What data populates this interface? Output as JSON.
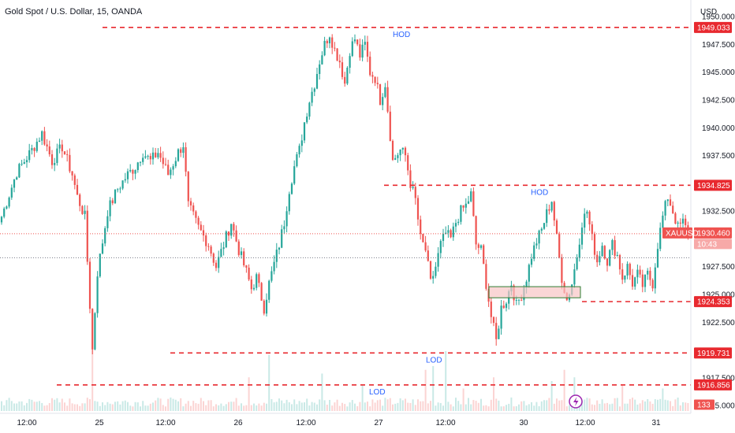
{
  "chart_data": {
    "type": "candlestick",
    "title": "Gold Spot / U.S. Dollar, 15, OANDA",
    "currency_label": "USD",
    "symbol": "XAUUSD",
    "last_price": "1930.460",
    "countdown": "10:43",
    "volume_label": "133",
    "ylim": [
      1914.3,
      1951.5
    ],
    "grid": false,
    "y_ticks": [
      "1950.000",
      "1947.500",
      "1945.000",
      "1942.500",
      "1940.000",
      "1937.500",
      "1932.500",
      "1927.500",
      "1925.000",
      "1922.500",
      "1917.500",
      "1915.000"
    ],
    "x_ticks": [
      "12:00",
      "25",
      "12:00",
      "26",
      "12:00",
      "27",
      "12:00",
      "30",
      "12:00",
      "31"
    ],
    "levels": [
      {
        "price": "1949.033",
        "annotation": "HOD"
      },
      {
        "price": "1934.825",
        "annotation": "HOD"
      },
      {
        "price": "1924.353",
        "annotation": ""
      },
      {
        "price": "1919.731",
        "annotation": "LOD"
      },
      {
        "price": "1916.856",
        "annotation": "LOD"
      }
    ],
    "demand_zone": {
      "from": 1924.7,
      "to": 1925.7
    },
    "up_color": "#26a69a",
    "down_color": "#ef5350",
    "level_color": "#e8292f",
    "annotation_color": "#2962ff",
    "price_path": [
      [
        0,
        1932.0
      ],
      [
        6,
        1936.0
      ],
      [
        12,
        1938.0
      ],
      [
        16,
        1939.5
      ],
      [
        20,
        1937.0
      ],
      [
        24,
        1938.3
      ],
      [
        28,
        1935.8
      ],
      [
        30,
        1933.8
      ],
      [
        33,
        1932.0
      ],
      [
        36,
        1920.0
      ],
      [
        38,
        1927.0
      ],
      [
        42,
        1932.5
      ],
      [
        46,
        1934.5
      ],
      [
        50,
        1935.8
      ],
      [
        53,
        1936.5
      ],
      [
        56,
        1937.8
      ],
      [
        59,
        1937.0
      ],
      [
        62,
        1937.8
      ],
      [
        66,
        1935.8
      ],
      [
        70,
        1937.8
      ],
      [
        72,
        1938.5
      ],
      [
        74,
        1933.0
      ],
      [
        78,
        1931.0
      ],
      [
        82,
        1929.5
      ],
      [
        85,
        1927.5
      ],
      [
        88,
        1929.5
      ],
      [
        91,
        1931.5
      ],
      [
        94,
        1929.0
      ],
      [
        97,
        1927.0
      ],
      [
        99,
        1925.5
      ],
      [
        101,
        1926.5
      ],
      [
        104,
        1923.8
      ],
      [
        106,
        1926.0
      ],
      [
        110,
        1929.5
      ],
      [
        112,
        1931.5
      ],
      [
        114,
        1934.5
      ],
      [
        116,
        1936.5
      ],
      [
        118,
        1938.0
      ],
      [
        120,
        1940.5
      ],
      [
        122,
        1942.5
      ],
      [
        124,
        1944.0
      ],
      [
        126,
        1946.0
      ],
      [
        128,
        1947.5
      ],
      [
        130,
        1948.5
      ],
      [
        132,
        1947.0
      ],
      [
        134,
        1946.0
      ],
      [
        136,
        1944.0
      ],
      [
        138,
        1947.0
      ],
      [
        140,
        1948.0
      ],
      [
        142,
        1946.5
      ],
      [
        144,
        1947.5
      ],
      [
        146,
        1945.0
      ],
      [
        148,
        1944.5
      ],
      [
        150,
        1942.5
      ],
      [
        152,
        1944.0
      ],
      [
        155,
        1937.0
      ],
      [
        158,
        1938.0
      ],
      [
        160,
        1937.5
      ],
      [
        162,
        1935.0
      ],
      [
        164,
        1933.5
      ],
      [
        166,
        1930.0
      ],
      [
        168,
        1929.0
      ],
      [
        170,
        1926.0
      ],
      [
        172,
        1927.5
      ],
      [
        174,
        1929.5
      ],
      [
        176,
        1930.5
      ],
      [
        178,
        1930.0
      ],
      [
        180,
        1931.5
      ],
      [
        182,
        1932.5
      ],
      [
        184,
        1933.0
      ],
      [
        186,
        1934.0
      ],
      [
        188,
        1929.5
      ],
      [
        190,
        1929.0
      ],
      [
        192,
        1926.0
      ],
      [
        194,
        1923.0
      ],
      [
        196,
        1920.8
      ],
      [
        198,
        1923.8
      ],
      [
        200,
        1924.5
      ],
      [
        202,
        1926.0
      ],
      [
        204,
        1924.0
      ],
      [
        206,
        1925.0
      ],
      [
        208,
        1926.5
      ],
      [
        210,
        1928.5
      ],
      [
        212,
        1929.8
      ],
      [
        214,
        1930.8
      ],
      [
        216,
        1932.3
      ],
      [
        218,
        1933.5
      ],
      [
        220,
        1930.0
      ],
      [
        222,
        1926.5
      ],
      [
        224,
        1924.5
      ],
      [
        226,
        1926.0
      ],
      [
        228,
        1928.5
      ],
      [
        230,
        1931.5
      ],
      [
        232,
        1932.5
      ],
      [
        234,
        1930.0
      ],
      [
        236,
        1928.0
      ],
      [
        238,
        1929.5
      ],
      [
        240,
        1928.0
      ],
      [
        242,
        1929.5
      ],
      [
        244,
        1928.5
      ],
      [
        246,
        1926.5
      ],
      [
        248,
        1927.5
      ],
      [
        250,
        1926.0
      ],
      [
        252,
        1926.8
      ],
      [
        254,
        1925.8
      ],
      [
        256,
        1926.8
      ],
      [
        258,
        1926.0
      ],
      [
        260,
        1929.5
      ],
      [
        262,
        1932.0
      ],
      [
        264,
        1933.8
      ],
      [
        266,
        1932.5
      ],
      [
        268,
        1931.0
      ],
      [
        270,
        1931.5
      ],
      [
        272,
        1930.5
      ]
    ],
    "volume_spikes": [
      [
        36,
        0.95
      ],
      [
        98,
        0.45
      ],
      [
        106,
        0.75
      ],
      [
        127,
        0.5
      ],
      [
        143,
        0.35
      ],
      [
        168,
        0.55
      ],
      [
        171,
        0.6
      ],
      [
        176,
        0.8
      ],
      [
        183,
        0.3
      ],
      [
        195,
        0.45
      ],
      [
        218,
        0.4
      ],
      [
        223,
        0.55
      ],
      [
        227,
        0.45
      ],
      [
        246,
        0.35
      ],
      [
        262,
        0.3
      ]
    ]
  }
}
